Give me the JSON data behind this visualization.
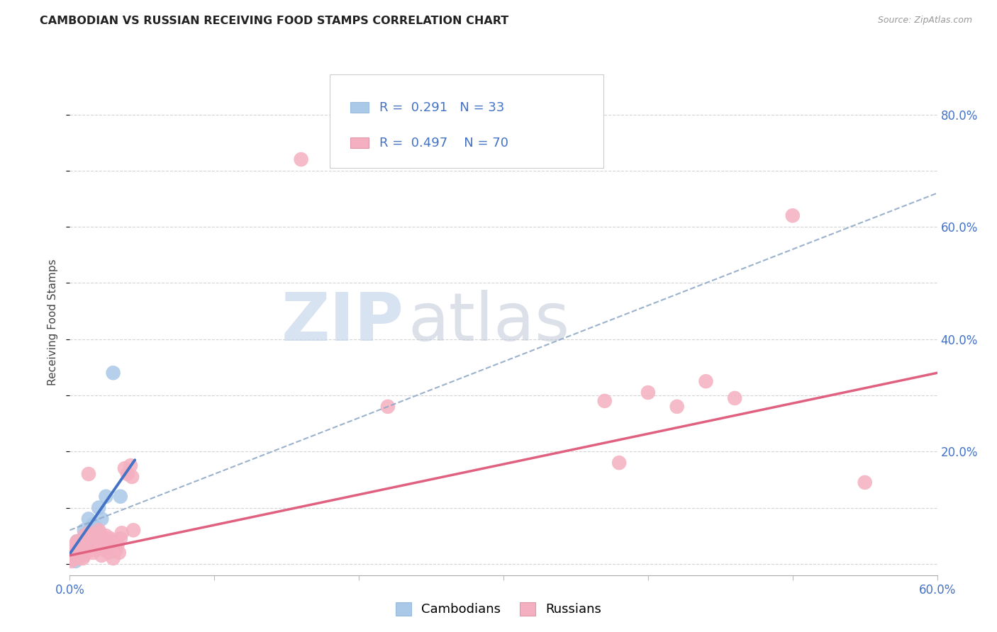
{
  "title": "CAMBODIAN VS RUSSIAN RECEIVING FOOD STAMPS CORRELATION CHART",
  "source": "Source: ZipAtlas.com",
  "ylabel": "Receiving Food Stamps",
  "xlim": [
    0.0,
    0.6
  ],
  "ylim": [
    -0.02,
    0.88
  ],
  "xticks": [
    0.0,
    0.1,
    0.2,
    0.3,
    0.4,
    0.5,
    0.6
  ],
  "xticklabels": [
    "0.0%",
    "",
    "",
    "",
    "",
    "",
    "60.0%"
  ],
  "ytick_positions": [
    0.0,
    0.2,
    0.4,
    0.6,
    0.8
  ],
  "yticklabels_right": [
    "",
    "20.0%",
    "40.0%",
    "60.0%",
    "80.0%"
  ],
  "cambodian_R": "0.291",
  "cambodian_N": "33",
  "russian_R": "0.497",
  "russian_N": "70",
  "cambodian_color": "#aac8e8",
  "cambodian_line_color": "#4472c4",
  "russian_color": "#f4b0c0",
  "russian_line_color": "#e06080",
  "dashed_line_color": "#90aac8",
  "background_color": "#ffffff",
  "grid_color": "#d0d0d0",
  "watermark_zip_color": "#c8d8ec",
  "watermark_atlas_color": "#c0c8d8",
  "cambodian_scatter": [
    [
      0.0,
      0.02
    ],
    [
      0.0,
      0.01
    ],
    [
      0.001,
      0.015
    ],
    [
      0.001,
      0.025
    ],
    [
      0.002,
      0.01
    ],
    [
      0.002,
      0.03
    ],
    [
      0.003,
      0.015
    ],
    [
      0.003,
      0.02
    ],
    [
      0.004,
      0.005
    ],
    [
      0.004,
      0.025
    ],
    [
      0.005,
      0.01
    ],
    [
      0.005,
      0.02
    ],
    [
      0.005,
      0.04
    ],
    [
      0.006,
      0.015
    ],
    [
      0.006,
      0.03
    ],
    [
      0.007,
      0.02
    ],
    [
      0.007,
      0.035
    ],
    [
      0.008,
      0.025
    ],
    [
      0.009,
      0.03
    ],
    [
      0.01,
      0.06
    ],
    [
      0.01,
      0.04
    ],
    [
      0.011,
      0.05
    ],
    [
      0.012,
      0.045
    ],
    [
      0.013,
      0.08
    ],
    [
      0.014,
      0.06
    ],
    [
      0.015,
      0.055
    ],
    [
      0.016,
      0.07
    ],
    [
      0.018,
      0.065
    ],
    [
      0.02,
      0.1
    ],
    [
      0.022,
      0.08
    ],
    [
      0.025,
      0.12
    ],
    [
      0.03,
      0.34
    ],
    [
      0.035,
      0.12
    ]
  ],
  "russian_scatter": [
    [
      0.0,
      0.01
    ],
    [
      0.001,
      0.005
    ],
    [
      0.001,
      0.02
    ],
    [
      0.002,
      0.015
    ],
    [
      0.002,
      0.025
    ],
    [
      0.003,
      0.01
    ],
    [
      0.003,
      0.03
    ],
    [
      0.004,
      0.02
    ],
    [
      0.004,
      0.035
    ],
    [
      0.005,
      0.015
    ],
    [
      0.005,
      0.025
    ],
    [
      0.005,
      0.04
    ],
    [
      0.006,
      0.01
    ],
    [
      0.006,
      0.03
    ],
    [
      0.007,
      0.02
    ],
    [
      0.007,
      0.015
    ],
    [
      0.008,
      0.025
    ],
    [
      0.008,
      0.035
    ],
    [
      0.009,
      0.01
    ],
    [
      0.01,
      0.03
    ],
    [
      0.01,
      0.05
    ],
    [
      0.01,
      0.015
    ],
    [
      0.012,
      0.025
    ],
    [
      0.012,
      0.04
    ],
    [
      0.013,
      0.055
    ],
    [
      0.013,
      0.16
    ],
    [
      0.014,
      0.035
    ],
    [
      0.015,
      0.05
    ],
    [
      0.015,
      0.025
    ],
    [
      0.016,
      0.04
    ],
    [
      0.016,
      0.02
    ],
    [
      0.017,
      0.035
    ],
    [
      0.018,
      0.03
    ],
    [
      0.018,
      0.05
    ],
    [
      0.019,
      0.04
    ],
    [
      0.02,
      0.06
    ],
    [
      0.02,
      0.03
    ],
    [
      0.021,
      0.055
    ],
    [
      0.022,
      0.045
    ],
    [
      0.022,
      0.015
    ],
    [
      0.023,
      0.03
    ],
    [
      0.024,
      0.025
    ],
    [
      0.025,
      0.05
    ],
    [
      0.025,
      0.035
    ],
    [
      0.026,
      0.04
    ],
    [
      0.027,
      0.02
    ],
    [
      0.028,
      0.045
    ],
    [
      0.029,
      0.035
    ],
    [
      0.03,
      0.04
    ],
    [
      0.03,
      0.01
    ],
    [
      0.032,
      0.025
    ],
    [
      0.033,
      0.035
    ],
    [
      0.034,
      0.02
    ],
    [
      0.035,
      0.045
    ],
    [
      0.036,
      0.055
    ],
    [
      0.038,
      0.17
    ],
    [
      0.04,
      0.16
    ],
    [
      0.042,
      0.175
    ],
    [
      0.043,
      0.155
    ],
    [
      0.044,
      0.06
    ],
    [
      0.16,
      0.72
    ],
    [
      0.22,
      0.28
    ],
    [
      0.37,
      0.29
    ],
    [
      0.38,
      0.18
    ],
    [
      0.4,
      0.305
    ],
    [
      0.42,
      0.28
    ],
    [
      0.44,
      0.325
    ],
    [
      0.46,
      0.295
    ],
    [
      0.5,
      0.62
    ],
    [
      0.55,
      0.145
    ]
  ],
  "cam_trend_x": [
    0.0,
    0.045
  ],
  "cam_trend_y": [
    0.018,
    0.185
  ],
  "rus_trend_x": [
    0.0,
    0.6
  ],
  "rus_trend_y": [
    0.015,
    0.34
  ],
  "dashed_trend_x": [
    0.0,
    0.6
  ],
  "dashed_trend_y": [
    0.06,
    0.66
  ]
}
